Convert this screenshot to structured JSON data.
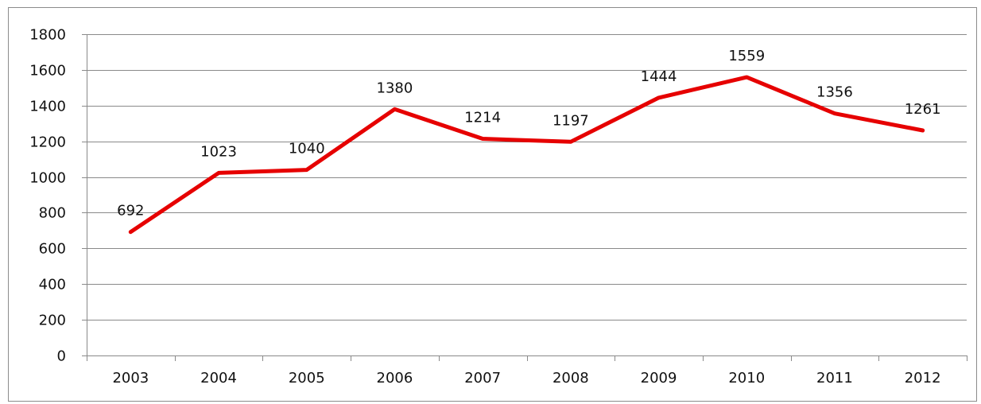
{
  "chart_data": {
    "type": "line",
    "title": "",
    "xlabel": "",
    "ylabel": "",
    "categories": [
      "2003",
      "2004",
      "2005",
      "2006",
      "2007",
      "2008",
      "2009",
      "2010",
      "2011",
      "2012"
    ],
    "series": [
      {
        "values": [
          692,
          1023,
          1040,
          1380,
          1214,
          1197,
          1444,
          1559,
          1356,
          1261
        ],
        "color": "#e60000"
      }
    ],
    "ylim": [
      0,
      1800
    ],
    "yticks": [
      "0",
      "200",
      "400",
      "600",
      "800",
      "1000",
      "1200",
      "1400",
      "1600",
      "1800"
    ],
    "data_labels": [
      "692",
      "1023",
      "1040",
      "1380",
      "1214",
      "1197",
      "1444",
      "1559",
      "1356",
      "1261"
    ],
    "grid": true,
    "legend": "none"
  }
}
